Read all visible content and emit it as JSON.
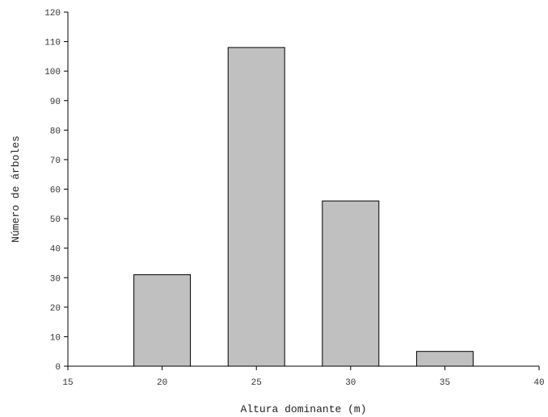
{
  "chart_data": {
    "type": "bar",
    "title": "",
    "xlabel": "Altura dominante (m)",
    "ylabel": "Número de árboles",
    "x": [
      20,
      25,
      30,
      35
    ],
    "values": [
      31,
      108,
      56,
      5
    ],
    "bin_width": 3,
    "xlim": [
      15,
      40
    ],
    "ylim": [
      0,
      120
    ],
    "x_ticks": [
      15,
      20,
      25,
      30,
      35,
      40
    ],
    "y_ticks": [
      0,
      10,
      20,
      30,
      40,
      50,
      60,
      70,
      80,
      90,
      100,
      110,
      120
    ],
    "grid": false,
    "legend": "none",
    "bar_color": "#c0c0c0",
    "edge_color": "#000000"
  }
}
